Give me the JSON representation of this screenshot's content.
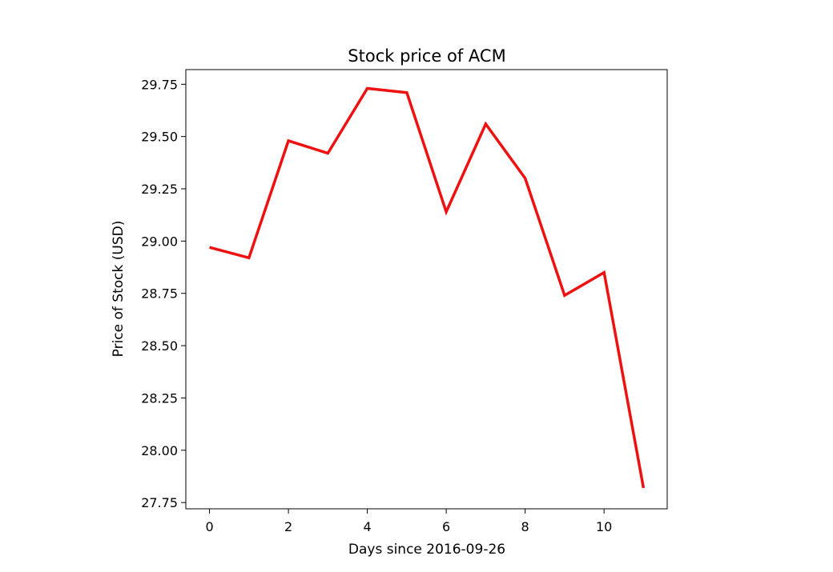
{
  "chart_data": {
    "type": "line",
    "title": "Stock price of ACM",
    "xlabel": "Days since 2016-09-26",
    "ylabel": "Price of Stock (USD)",
    "xlim": [
      -0.6,
      11.6
    ],
    "ylim": [
      27.72,
      29.82
    ],
    "xticks": [
      0,
      2,
      4,
      6,
      8,
      10
    ],
    "xtick_labels": [
      "0",
      "2",
      "4",
      "6",
      "8",
      "10"
    ],
    "yticks": [
      27.75,
      28.0,
      28.25,
      28.5,
      28.75,
      29.0,
      29.25,
      29.5,
      29.75
    ],
    "ytick_labels": [
      "27.75",
      "28.00",
      "28.25",
      "28.50",
      "28.75",
      "29.00",
      "29.25",
      "29.50",
      "29.75"
    ],
    "grid": false,
    "series": [
      {
        "color": "#ee1111",
        "x": [
          0,
          1,
          2,
          3,
          4,
          5,
          6,
          7,
          8,
          9,
          10,
          11
        ],
        "y": [
          28.97,
          28.92,
          29.48,
          29.42,
          29.73,
          29.71,
          29.14,
          29.56,
          29.3,
          28.74,
          28.85,
          27.82
        ]
      }
    ]
  }
}
